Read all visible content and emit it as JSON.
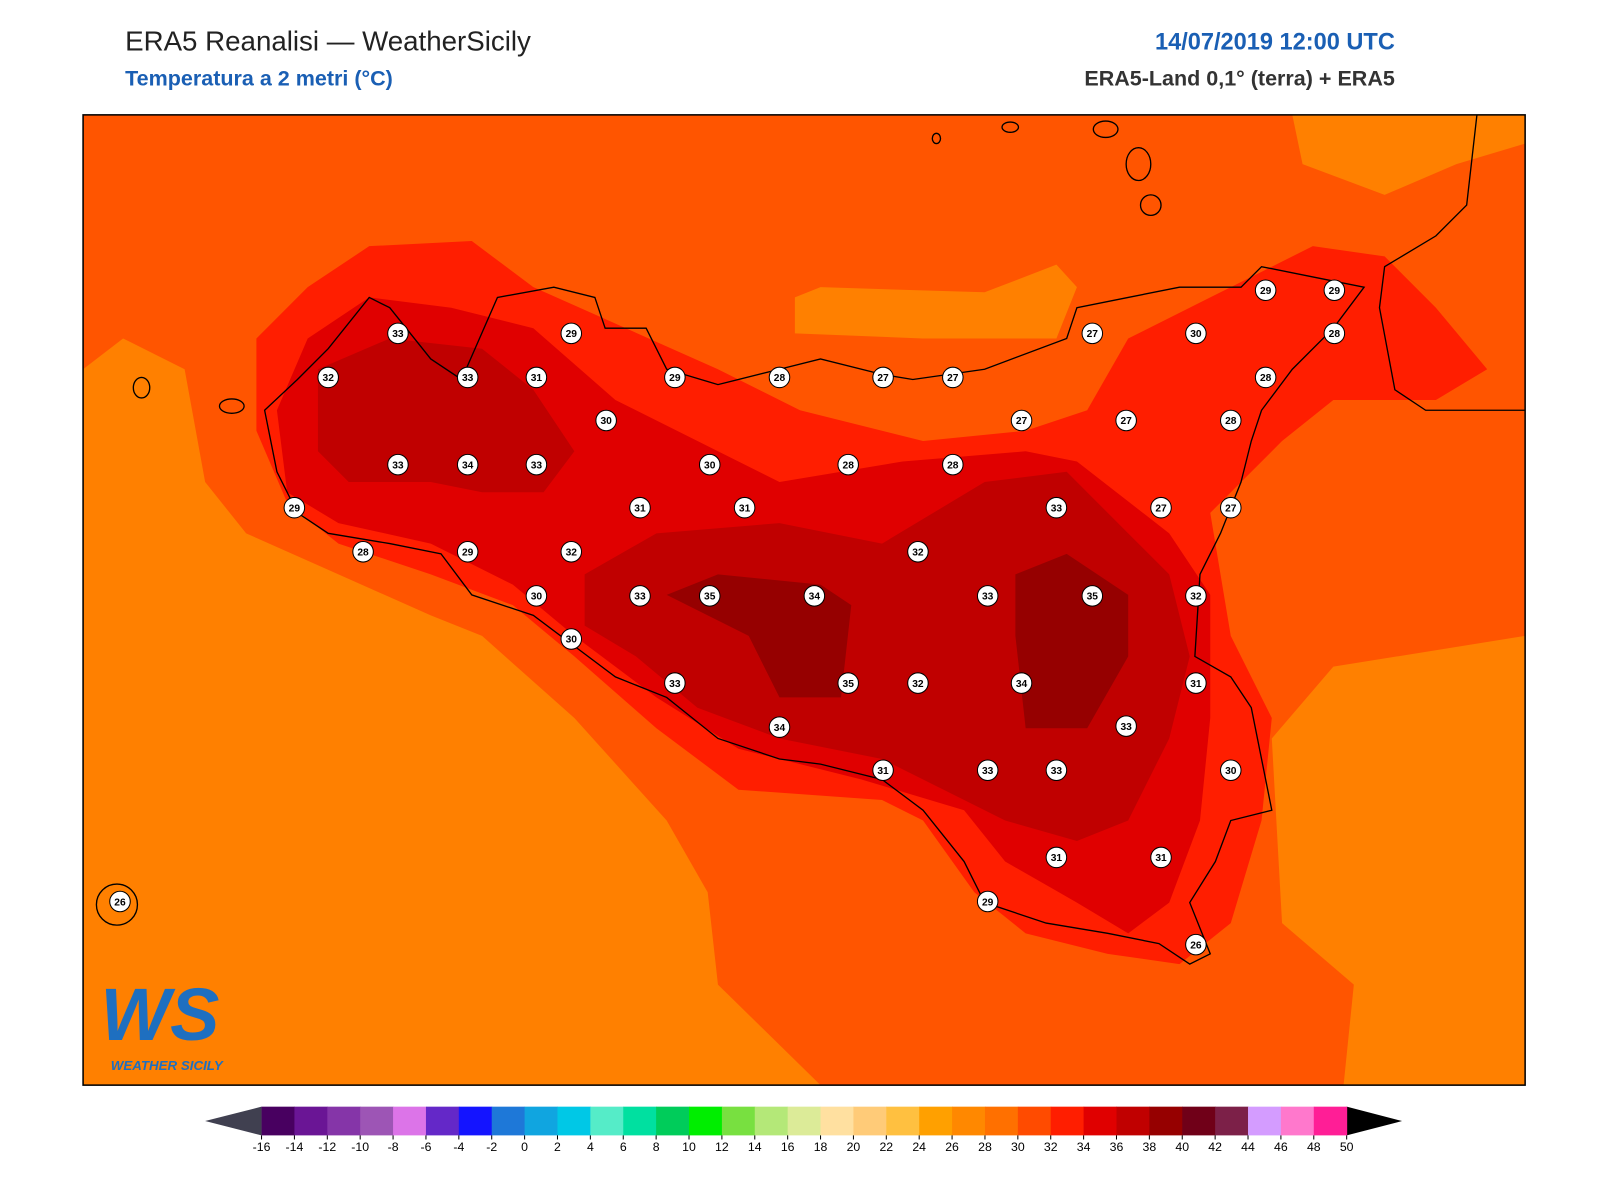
{
  "header": {
    "title": "ERA5 Reanalisi — WeatherSicily",
    "subtitle": "Temperatura a 2 metri (°C)",
    "date": "14/07/2019 12:00 UTC",
    "source": "ERA5-Land 0,1° (terra) + ERA5"
  },
  "logo": {
    "mark": "WS",
    "text": "WEATHER SICILY"
  },
  "stations": [
    29,
    29,
    33,
    29,
    27,
    30,
    28,
    32,
    33,
    31,
    29,
    28,
    27,
    27,
    28,
    30,
    27,
    27,
    28,
    33,
    34,
    33,
    30,
    28,
    28,
    29,
    31,
    31,
    33,
    27,
    27,
    28,
    29,
    32,
    32,
    30,
    33,
    35,
    34,
    33,
    35,
    32,
    30,
    33,
    35,
    32,
    34,
    31,
    34,
    33,
    31,
    33,
    33,
    30,
    31,
    31,
    26,
    29,
    26
  ],
  "colorbar": {
    "ticks": [
      -16,
      -14,
      -12,
      -10,
      -8,
      -6,
      -4,
      -2,
      0,
      2,
      4,
      6,
      8,
      10,
      12,
      14,
      16,
      18,
      20,
      22,
      24,
      26,
      28,
      30,
      32,
      34,
      36,
      38,
      40,
      42,
      44,
      46,
      48,
      50
    ],
    "colors": [
      "#480060",
      "#6a1595",
      "#8535a8",
      "#9d55b5",
      "#dc74e8",
      "#6428c8",
      "#1414ff",
      "#1e78d8",
      "#10a5e0",
      "#00c8e6",
      "#55ecc8",
      "#00e0a0",
      "#00cc5a",
      "#00ee00",
      "#78e040",
      "#b4e878",
      "#dceb98",
      "#ffe0a0",
      "#ffcb78",
      "#ffc040",
      "#ffa000",
      "#ff8800",
      "#ff7000",
      "#ff4b00",
      "#ff1e00",
      "#e00000",
      "#c00000",
      "#960000",
      "#700018",
      "#7c2048",
      "#d49cff",
      "#ff78cc",
      "#ff1e96",
      "#7a7a7a",
      "#3a3a3a"
    ],
    "under_color": "#404050",
    "over_color": "#000000"
  }
}
